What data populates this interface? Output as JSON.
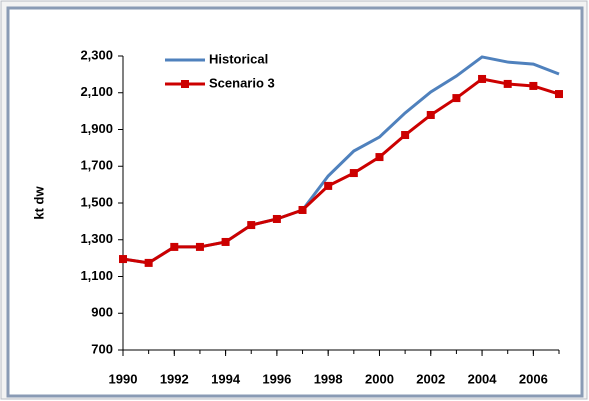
{
  "chart_data": {
    "type": "line",
    "y_label": "kt dw",
    "x": [
      1990,
      1991,
      1992,
      1993,
      1994,
      1995,
      1996,
      1997,
      1998,
      1999,
      2000,
      2001,
      2002,
      2003,
      2004,
      2005,
      2006,
      2007
    ],
    "series": [
      {
        "name": "Historical",
        "color": "#4f81bd",
        "values": [
          1195,
          1174,
          1261,
          1261,
          1288,
          1380,
          1413,
          1462,
          1647,
          1783,
          1859,
          1990,
          2104,
          2191,
          2295,
          2267,
          2256,
          2202
        ]
      },
      {
        "name": "Scenario 3",
        "color": "#cc0000",
        "marker": "square",
        "values": [
          1195,
          1174,
          1261,
          1261,
          1288,
          1380,
          1413,
          1462,
          1593,
          1663,
          1750,
          1870,
          1979,
          2071,
          2175,
          2148,
          2137,
          2093
        ]
      }
    ],
    "xlim": [
      1990,
      2007
    ],
    "xticks": [
      1990,
      1992,
      1994,
      1996,
      1998,
      2000,
      2002,
      2004,
      2006
    ],
    "ylim": [
      700,
      2300
    ],
    "yticks": [
      700,
      900,
      {
        "value": 1100,
        "label": "1,100"
      },
      {
        "value": 1300,
        "label": "1,300"
      },
      {
        "value": 1500,
        "label": "1,500"
      },
      {
        "value": 1700,
        "label": "1,700"
      },
      {
        "value": 1900,
        "label": "1,900"
      },
      {
        "value": 2100,
        "label": "2,100"
      },
      {
        "value": 2300,
        "label": "2,300"
      }
    ],
    "legend": "upper-left"
  }
}
